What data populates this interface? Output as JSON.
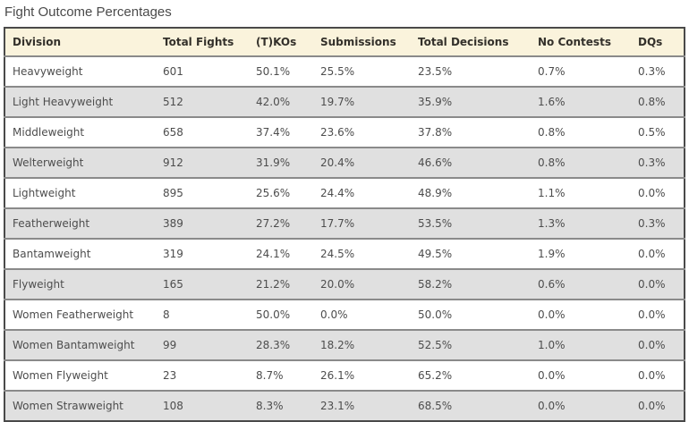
{
  "page": {
    "title": "Fight Outcome Percentages"
  },
  "colors": {
    "header_bg": "#faf3dc",
    "row_bg": "#ffffff",
    "row_alt_bg": "#e0e0e0",
    "border_outer": "#4a4a4a",
    "border_row": "#8a8a8a",
    "header_text": "#33302a",
    "cell_text": "#4d4d4d",
    "title_text": "#4a4a4a"
  },
  "chart_data": {
    "type": "table",
    "title": "Fight Outcome Percentages",
    "columns": [
      "Division",
      "Total Fights",
      "(T)KOs",
      "Submissions",
      "Total Decisions",
      "No Contests",
      "DQs"
    ],
    "rows": [
      [
        "Heavyweight",
        "601",
        "50.1%",
        "25.5%",
        "23.5%",
        "0.7%",
        "0.3%"
      ],
      [
        "Light Heavyweight",
        "512",
        "42.0%",
        "19.7%",
        "35.9%",
        "1.6%",
        "0.8%"
      ],
      [
        "Middleweight",
        "658",
        "37.4%",
        "23.6%",
        "37.8%",
        "0.8%",
        "0.5%"
      ],
      [
        "Welterweight",
        "912",
        "31.9%",
        "20.4%",
        "46.6%",
        "0.8%",
        "0.3%"
      ],
      [
        "Lightweight",
        "895",
        "25.6%",
        "24.4%",
        "48.9%",
        "1.1%",
        "0.0%"
      ],
      [
        "Featherweight",
        "389",
        "27.2%",
        "17.7%",
        "53.5%",
        "1.3%",
        "0.3%"
      ],
      [
        "Bantamweight",
        "319",
        "24.1%",
        "24.5%",
        "49.5%",
        "1.9%",
        "0.0%"
      ],
      [
        "Flyweight",
        "165",
        "21.2%",
        "20.0%",
        "58.2%",
        "0.6%",
        "0.0%"
      ],
      [
        "Women Featherweight",
        "8",
        "50.0%",
        "0.0%",
        "50.0%",
        "0.0%",
        "0.0%"
      ],
      [
        "Women Bantamweight",
        "99",
        "28.3%",
        "18.2%",
        "52.5%",
        "1.0%",
        "0.0%"
      ],
      [
        "Women Flyweight",
        "23",
        "8.7%",
        "26.1%",
        "65.2%",
        "0.0%",
        "0.0%"
      ],
      [
        "Women Strawweight",
        "108",
        "8.3%",
        "23.1%",
        "68.5%",
        "0.0%",
        "0.0%"
      ]
    ],
    "layout": {
      "striped": true,
      "first_row_background": "white",
      "alternate_row_background": "gray"
    }
  }
}
